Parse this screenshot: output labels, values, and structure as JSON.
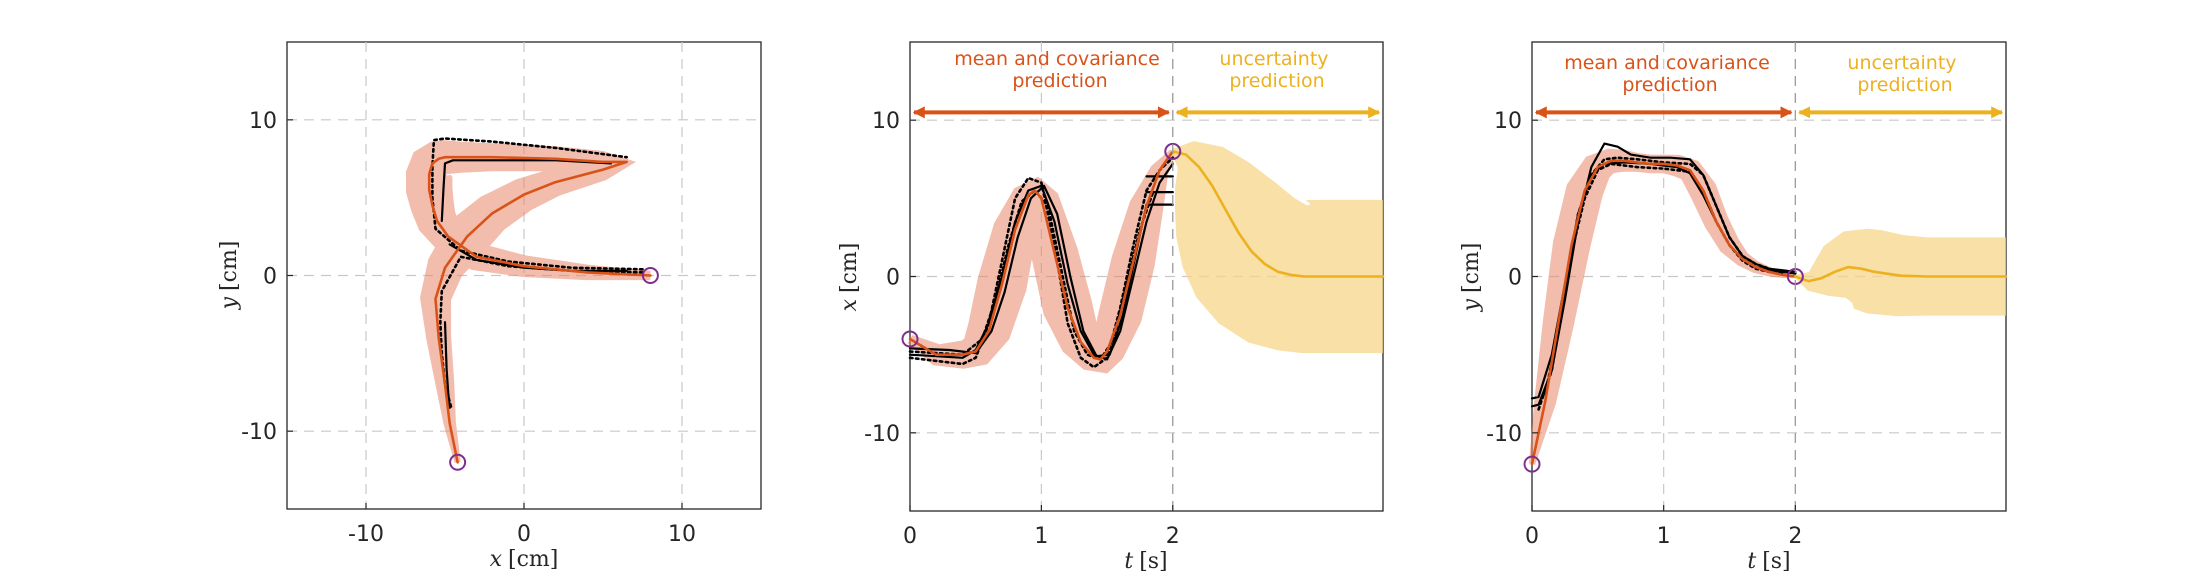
{
  "colors": {
    "mean": "#d95319",
    "band_fill": "#e8876a",
    "uncertainty": "#edb120",
    "uncertainty_fill": "#f6d58a",
    "demo": "#000000",
    "marker": "#7e2f8e",
    "grid": "#c8c8c8"
  },
  "chart_data": [
    {
      "type": "line",
      "xlabel_var": "x",
      "xlabel_unit": "[cm]",
      "ylabel_var": "y",
      "ylabel_unit": "[cm]",
      "xlim": [
        -15,
        15
      ],
      "ylim": [
        -15,
        15
      ],
      "xticks": [
        -10,
        0,
        10
      ],
      "yticks": [
        -10,
        0,
        10
      ],
      "grid": true,
      "series": [
        {
          "role": "mean",
          "x": [
            8,
            4,
            0,
            -3,
            -4.8,
            -5.5,
            -5.8,
            -6,
            -6,
            -5.8,
            -5.4,
            -5,
            -4,
            -2,
            2,
            5,
            6.5,
            5,
            2,
            0,
            -2,
            -3.6,
            -5,
            -5.6,
            -5.4,
            -5,
            -4.7,
            -4.2
          ],
          "y": [
            0,
            0.2,
            0.6,
            1.2,
            2.5,
            3.5,
            4.5,
            5.5,
            6.5,
            7.2,
            7.5,
            7.6,
            7.6,
            7.6,
            7.5,
            7.3,
            7.3,
            6.8,
            6,
            5.2,
            4,
            2.5,
            0.5,
            -1.5,
            -4,
            -7,
            -9.5,
            -12
          ],
          "band_halfwidth": [
            0.3,
            0.5,
            0.7,
            0.9,
            1.1,
            1.3,
            1.4,
            1.5,
            1.5,
            1.4,
            1.2,
            1.1,
            1.0,
            0.9,
            0.8,
            0.7,
            0.6,
            0.7,
            0.9,
            1.1,
            1.3,
            1.5,
            1.2,
            1.0,
            0.8,
            0.6,
            0.4,
            0.2
          ]
        },
        {
          "role": "demo",
          "style": "dotted",
          "x": [
            7.5,
            3,
            -1,
            -4,
            -5.6,
            -5.8,
            -5.8,
            -5.7,
            -5,
            -2,
            2,
            5,
            6.5
          ],
          "y": [
            0.4,
            0.5,
            0.9,
            1.6,
            3,
            5,
            7,
            8.7,
            8.8,
            8.6,
            8.2,
            7.8,
            7.6
          ]
        },
        {
          "role": "demo",
          "style": "dotted",
          "x": [
            7.5,
            3,
            -1,
            -4,
            -5.2,
            -5.3,
            -5.2,
            -5,
            -4.6
          ],
          "y": [
            0.2,
            0.3,
            0.6,
            1.2,
            -1,
            -3,
            -5,
            -7,
            -8.5
          ]
        },
        {
          "role": "demo",
          "style": "solid",
          "x": [
            -5.2,
            -5.1,
            -5,
            -4.5,
            -2,
            2,
            5.5
          ],
          "y": [
            3.5,
            5.5,
            7.2,
            7.4,
            7.4,
            7.4,
            7.2
          ]
        },
        {
          "role": "demo",
          "style": "solid",
          "x": [
            6.5,
            3,
            0,
            -3,
            -4.7
          ],
          "y": [
            0.3,
            0.3,
            0.5,
            1,
            2
          ]
        },
        {
          "role": "demo",
          "style": "solid",
          "x": [
            -5.0,
            -4.9,
            -4.8,
            -4.7
          ],
          "y": [
            -3,
            -6,
            -7.5,
            -8.5
          ]
        }
      ],
      "markers": [
        {
          "x": 8,
          "y": 0
        },
        {
          "x": -4.2,
          "y": -12
        }
      ]
    },
    {
      "type": "line",
      "xlabel_var": "t",
      "xlabel_unit": "[s]",
      "ylabel_var": "x",
      "ylabel_unit": "[cm]",
      "xlim": [
        0,
        3.6
      ],
      "ylim": [
        -15,
        15
      ],
      "xticks": [
        0,
        1,
        2
      ],
      "yticks": [
        -10,
        0,
        10
      ],
      "grid": true,
      "annotation_left": [
        "mean and covariance",
        "prediction"
      ],
      "annotation_right": [
        "uncertainty",
        "prediction"
      ],
      "arrow_y": 10.5,
      "split_t": 2,
      "series": [
        {
          "role": "mean",
          "x": [
            0,
            0.2,
            0.4,
            0.5,
            0.6,
            0.7,
            0.8,
            0.9,
            0.95,
            1.0,
            1.1,
            1.2,
            1.3,
            1.4,
            1.45,
            1.5,
            1.6,
            1.7,
            1.8,
            1.9,
            2.0
          ],
          "y": [
            -4,
            -5,
            -5,
            -4.8,
            -3.5,
            -0.5,
            3,
            5.2,
            5.5,
            5,
            1.5,
            -2,
            -4.2,
            -5.2,
            -5.3,
            -4.8,
            -2.5,
            1,
            4.5,
            6.8,
            8
          ],
          "band_halfwidth": [
            0.3,
            0.7,
            0.9,
            1.1,
            1.4,
            1.6,
            1.4,
            1.0,
            0.9,
            1.1,
            1.5,
            1.6,
            1.3,
            1.0,
            1.0,
            1.1,
            1.4,
            1.4,
            1.1,
            0.6,
            0.2
          ]
        },
        {
          "role": "uncertainty",
          "x": [
            2.0,
            2.1,
            2.2,
            2.3,
            2.4,
            2.5,
            2.6,
            2.7,
            2.8,
            2.9,
            3.0,
            3.2,
            3.4,
            3.6
          ],
          "y": [
            8,
            7.8,
            7,
            5.8,
            4.3,
            2.8,
            1.6,
            0.8,
            0.3,
            0.1,
            0,
            0,
            0,
            0
          ],
          "band_halfwidth": [
            0.2,
            1.0,
            2.0,
            2.8,
            3.6,
            4.2,
            4.6,
            4.8,
            4.9,
            4.9,
            4.9,
            4.9,
            4.9,
            4.9
          ]
        },
        {
          "role": "demo",
          "style": "dotted",
          "x": [
            0,
            0.2,
            0.4,
            0.5,
            0.6,
            0.7,
            0.8,
            0.9,
            1.0,
            1.1,
            1.2,
            1.3,
            1.4,
            1.5,
            1.6,
            1.7,
            1.8,
            1.9,
            2.0
          ],
          "y": [
            -5.2,
            -5.4,
            -5.6,
            -5.2,
            -3,
            1,
            5,
            6.3,
            6,
            2,
            -3,
            -5.2,
            -5.8,
            -5.2,
            -2,
            2,
            5.5,
            6.8,
            7.6
          ]
        },
        {
          "role": "demo",
          "style": "dotted",
          "x": [
            0,
            0.2,
            0.4,
            0.55,
            0.65,
            0.75,
            0.85,
            0.95,
            1.05,
            1.15,
            1.25,
            1.35,
            1.45,
            1.55,
            1.65,
            1.75,
            1.85
          ],
          "y": [
            -4.8,
            -4.9,
            -5,
            -4,
            -1.5,
            2,
            4.8,
            5.5,
            4.5,
            0.5,
            -3.5,
            -5,
            -5.3,
            -4,
            -0.5,
            3,
            5.4
          ]
        },
        {
          "role": "demo",
          "style": "solid",
          "x": [
            0,
            0.2,
            0.4,
            0.5,
            0.6,
            0.7,
            0.8,
            0.9,
            1.0,
            1.1,
            1.2,
            1.3,
            1.4,
            1.5,
            1.6,
            1.7,
            1.8,
            1.9,
            2.0
          ],
          "y": [
            -5,
            -5.1,
            -5.2,
            -4.7,
            -3,
            0,
            3.5,
            5.5,
            5.8,
            3.5,
            -0.5,
            -3.5,
            -5,
            -5.3,
            -3.5,
            0,
            3.5,
            6,
            7.2
          ]
        },
        {
          "role": "demo",
          "style": "solid",
          "x": [
            0,
            0.3,
            0.5,
            0.62,
            0.72,
            0.82,
            0.92,
            1.02,
            1.12,
            1.22,
            1.32,
            1.42,
            1.52,
            1.62,
            1.72,
            1.8
          ],
          "y": [
            -4.6,
            -4.7,
            -4.9,
            -3.5,
            -1,
            2.5,
            5,
            5.8,
            4,
            0,
            -3.5,
            -5.1,
            -5,
            -2.5,
            1.5,
            4.6
          ]
        },
        {
          "role": "demo",
          "style": "solid",
          "x": [
            1.8,
            2.0
          ],
          "y": [
            6.4,
            6.4
          ]
        },
        {
          "role": "demo",
          "style": "solid",
          "x": [
            1.8,
            2.0
          ],
          "y": [
            5.4,
            5.4
          ]
        },
        {
          "role": "demo",
          "style": "solid",
          "x": [
            1.8,
            2.0
          ],
          "y": [
            4.6,
            4.6
          ]
        }
      ],
      "markers": [
        {
          "x": 0,
          "y": -4
        },
        {
          "x": 2,
          "y": 8
        }
      ]
    },
    {
      "type": "line",
      "xlabel_var": "t",
      "xlabel_unit": "[s]",
      "ylabel_var": "y",
      "ylabel_unit": "[cm]",
      "xlim": [
        0,
        3.6
      ],
      "ylim": [
        -15,
        15
      ],
      "xticks": [
        0,
        1,
        2
      ],
      "yticks": [
        -10,
        0,
        10
      ],
      "grid": true,
      "annotation_left": [
        "mean and covariance",
        "prediction"
      ],
      "annotation_right": [
        "uncertainty",
        "prediction"
      ],
      "arrow_y": 10.5,
      "split_t": 2,
      "series": [
        {
          "role": "mean",
          "x": [
            0,
            0.1,
            0.2,
            0.3,
            0.4,
            0.5,
            0.6,
            0.7,
            0.8,
            0.9,
            1.0,
            1.1,
            1.2,
            1.3,
            1.4,
            1.5,
            1.6,
            1.7,
            1.8,
            1.9,
            2.0
          ],
          "y": [
            -12,
            -8,
            -3,
            2,
            5.5,
            7,
            7.4,
            7.4,
            7.3,
            7.2,
            7.2,
            7.1,
            6.8,
            5.5,
            3.5,
            2,
            1.1,
            0.6,
            0.3,
            0.1,
            0
          ],
          "band_halfwidth": [
            0.2,
            0.7,
            1.0,
            1.2,
            1.2,
            1.0,
            0.8,
            0.7,
            0.6,
            0.6,
            0.6,
            0.7,
            0.8,
            0.9,
            0.8,
            0.7,
            0.5,
            0.4,
            0.3,
            0.2,
            0.1
          ]
        },
        {
          "role": "uncertainty",
          "x": [
            2.0,
            2.1,
            2.2,
            2.3,
            2.4,
            2.5,
            2.6,
            2.8,
            3.0,
            3.2,
            3.4,
            3.6
          ],
          "y": [
            0,
            -0.3,
            -0.1,
            0.3,
            0.6,
            0.5,
            0.3,
            0.05,
            0,
            0,
            0,
            0
          ],
          "band_halfwidth": [
            0.1,
            0.6,
            1.2,
            1.8,
            2.3,
            2.6,
            2.7,
            2.6,
            2.5,
            2.5,
            2.5,
            2.5
          ]
        },
        {
          "role": "demo",
          "style": "dotted",
          "x": [
            0.05,
            0.15,
            0.25,
            0.35,
            0.45,
            0.55,
            0.65,
            0.8,
            1.0,
            1.2,
            1.3,
            1.4,
            1.5,
            1.6,
            1.7,
            1.8,
            1.9,
            2.0
          ],
          "y": [
            -8.5,
            -6,
            -1,
            4,
            6.5,
            7.5,
            7.6,
            7.5,
            7.3,
            7.2,
            6.5,
            4.5,
            2.5,
            1.3,
            0.8,
            0.5,
            0.3,
            0.2
          ]
        },
        {
          "role": "demo",
          "style": "dotted",
          "x": [
            0.1,
            0.2,
            0.3,
            0.4,
            0.5,
            0.6,
            0.8,
            1.0,
            1.2,
            1.3,
            1.4,
            1.5,
            1.6,
            1.7,
            1.8,
            1.9
          ],
          "y": [
            -7.5,
            -3.5,
            1.5,
            5,
            6.8,
            7.2,
            7,
            6.9,
            6.7,
            5.5,
            3.5,
            2,
            1,
            0.5,
            0.3,
            0.2
          ]
        },
        {
          "role": "demo",
          "style": "solid",
          "x": [
            0.0,
            0.05,
            0.15,
            0.25,
            0.35,
            0.45,
            0.55,
            0.65,
            0.75,
            0.9,
            1.05,
            1.2,
            1.3,
            1.4,
            1.5,
            1.6,
            1.7,
            1.8,
            1.9,
            2.0
          ],
          "y": [
            -8.3,
            -8.2,
            -6,
            -1.5,
            3.5,
            7,
            8.5,
            8.3,
            7.8,
            7.6,
            7.6,
            7.5,
            6.5,
            4.5,
            2.5,
            1.3,
            0.8,
            0.5,
            0.4,
            0.3
          ]
        },
        {
          "role": "demo",
          "style": "solid",
          "x": [
            0.0,
            0.05,
            0.15,
            0.25,
            0.35,
            0.45,
            0.55,
            0.7,
            0.9,
            1.1,
            1.2,
            1.3,
            1.4,
            1.5,
            1.6,
            1.7,
            1.8,
            1.9,
            2.0
          ],
          "y": [
            -7.8,
            -7.7,
            -5,
            -0.5,
            4,
            6.5,
            7.2,
            7.3,
            7.2,
            7,
            6.6,
            5.2,
            3.5,
            2,
            1.1,
            0.6,
            0.4,
            0.3,
            0.2
          ]
        }
      ],
      "markers": [
        {
          "x": 0,
          "y": -12
        },
        {
          "x": 2,
          "y": 0
        }
      ]
    }
  ]
}
